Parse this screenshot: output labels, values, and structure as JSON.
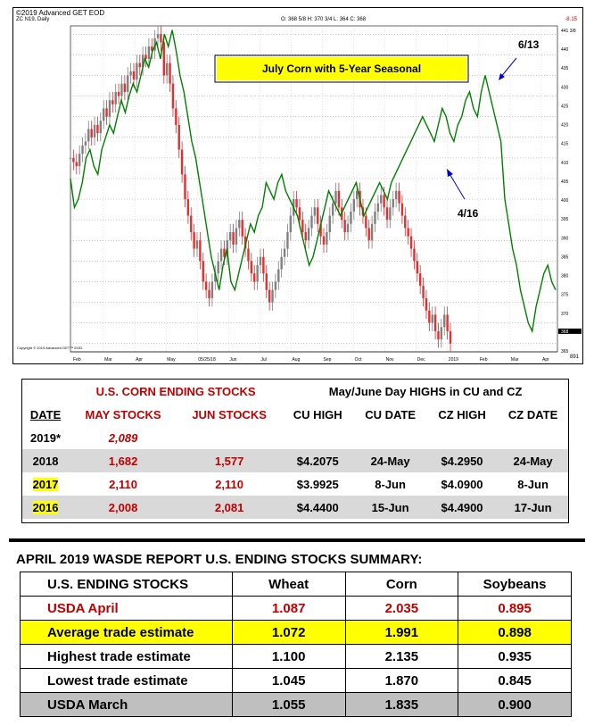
{
  "chart_header": {
    "source": "©2019 Advanced GET EOD",
    "symbol": "ZC N19, Daily",
    "ohlc": "O: 368 5/8  H: 370 3/4  L: 364  C: 368",
    "top_right": "-8.15",
    "copyright": "Copyright © 2019 Advanced GET™ EOD",
    "corner": "891"
  },
  "chart_data": {
    "type": "line",
    "title": "July Corn with 5-Year Seasonal",
    "xlabel": "",
    "ylabel": "",
    "x_tick_labels": [
      "Feb",
      "Mar",
      "Apr",
      "May",
      "05/25/18",
      "Jun",
      "Jul",
      "Aug",
      "Sep",
      "Oct",
      "Nov",
      "Dec",
      "2019",
      "Feb",
      "Mar",
      "Apr"
    ],
    "y_tick_labels": [
      "441 3/8",
      "440",
      "435",
      "430",
      "425",
      "420",
      "415",
      "410",
      "405",
      "400",
      "395",
      "390",
      "385",
      "380",
      "375",
      "370",
      "368",
      "365"
    ],
    "ylim": [
      363,
      442
    ],
    "annotations": [
      {
        "text": "6/13"
      },
      {
        "text": "4/16"
      }
    ],
    "series": [
      {
        "style": "candlestick",
        "color_up": "#808080",
        "color_down": "#e03030",
        "values": [
          410,
          409,
          408,
          411,
          413,
          414,
          417,
          415,
          418,
          416,
          419,
          422,
          420,
          424,
          423,
          426,
          425,
          428,
          426,
          430,
          431,
          429,
          433,
          432,
          435,
          434,
          437,
          436,
          439,
          440,
          438,
          430,
          433,
          428,
          422,
          418,
          412,
          406,
          400,
          396,
          392,
          388,
          390,
          385,
          380,
          378,
          376,
          380,
          382,
          385,
          388,
          386,
          390,
          392,
          389,
          393,
          395,
          391,
          388,
          385,
          382,
          380,
          384,
          386,
          382,
          378,
          375,
          378,
          380,
          383,
          386,
          388,
          392,
          396,
          400,
          398,
          395,
          392,
          390,
          393,
          396,
          398,
          394,
          391,
          389,
          392,
          396,
          399,
          402,
          398,
          395,
          392,
          394,
          397,
          400,
          402,
          398,
          396,
          393,
          390,
          394,
          397,
          399,
          401,
          398,
          395,
          398,
          400,
          402,
          399,
          396,
          393,
          391,
          388,
          385,
          382,
          379,
          376,
          373,
          370,
          372,
          368,
          366,
          369,
          372,
          368,
          365
        ]
      },
      {
        "style": "line",
        "color": "#008000",
        "values": [
          405,
          398,
          400,
          404,
          410,
          412,
          408,
          406,
          412,
          415,
          418,
          416,
          420,
          424,
          421,
          425,
          428,
          426,
          430,
          434,
          432,
          436,
          438,
          434,
          440,
          437,
          441,
          436,
          430,
          426,
          420,
          414,
          410,
          404,
          398,
          392,
          386,
          382,
          378,
          384,
          388,
          380,
          378,
          382,
          386,
          390,
          394,
          392,
          396,
          398,
          404,
          402,
          400,
          404,
          406,
          402,
          400,
          398,
          396,
          392,
          388,
          384,
          386,
          390,
          394,
          398,
          402,
          400,
          398,
          396,
          398,
          400,
          402,
          404,
          400,
          396,
          398,
          400,
          402,
          404,
          402,
          400,
          404,
          406,
          408,
          410,
          412,
          414,
          416,
          418,
          420,
          418,
          416,
          414,
          418,
          422,
          420,
          416,
          414,
          418,
          420,
          424,
          426,
          422,
          420,
          426,
          430,
          426,
          422,
          418,
          414,
          400,
          394,
          388,
          384,
          378,
          374,
          370,
          368,
          374,
          378,
          382,
          384,
          380,
          378
        ]
      }
    ]
  },
  "table1": {
    "group_title_1": "U.S. CORN ENDING STOCKS",
    "group_title_2": "May/June Day HIGHS in CU and CZ",
    "columns": [
      "DATE",
      "MAY STOCKS",
      "JUN STOCKS",
      "CU HIGH",
      "CU DATE",
      "CZ HIGH",
      "CZ DATE"
    ],
    "rows": [
      {
        "date": "2019*",
        "may": "2,089",
        "jun": "",
        "cu_high": "",
        "cu_date": "",
        "cz_high": "",
        "cz_date": ""
      },
      {
        "date": "2018",
        "may": "1,682",
        "jun": "1,577",
        "cu_high": "$4.2075",
        "cu_date": "24-May",
        "cz_high": "$4.2950",
        "cz_date": "24-May"
      },
      {
        "date": "2017",
        "may": "2,110",
        "jun": "2,110",
        "cu_high": "$3.9925",
        "cu_date": "8-Jun",
        "cz_high": "$4.0900",
        "cz_date": "8-Jun"
      },
      {
        "date": "2016",
        "may": "2,008",
        "jun": "2,081",
        "cu_high": "$4.4400",
        "cu_date": "15-Jun",
        "cz_high": "$4.4900",
        "cz_date": "17-Jun"
      }
    ]
  },
  "table2": {
    "title": "APRIL 2019 WASDE REPORT U.S. ENDING STOCKS SUMMARY:",
    "columns": [
      "U.S. ENDING STOCKS",
      "Wheat",
      "Corn",
      "Soybeans"
    ],
    "rows": [
      {
        "label": "USDA April",
        "wheat": "1.087",
        "corn": "2.035",
        "soy": "0.895"
      },
      {
        "label": "Average trade estimate",
        "wheat": "1.072",
        "corn": "1.991",
        "soy": "0.898"
      },
      {
        "label": "Highest trade estimate",
        "wheat": "1.100",
        "corn": "2.135",
        "soy": "0.935"
      },
      {
        "label": "Lowest trade estimate",
        "wheat": "1.045",
        "corn": "1.870",
        "soy": "0.845"
      },
      {
        "label": "USDA March",
        "wheat": "1.055",
        "corn": "1.835",
        "soy": "0.900"
      }
    ]
  }
}
